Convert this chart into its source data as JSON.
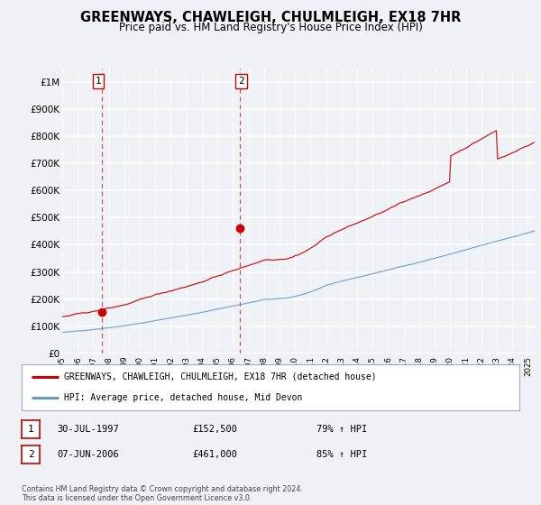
{
  "title": "GREENWAYS, CHAWLEIGH, CHULMLEIGH, EX18 7HR",
  "subtitle": "Price paid vs. HM Land Registry's House Price Index (HPI)",
  "title_fontsize": 10.5,
  "subtitle_fontsize": 8.5,
  "hpi_color": "#6699cc",
  "price_color": "#cc0000",
  "bg_color": "#eef2f7",
  "plot_bg": "#eef2f7",
  "grid_color": "#ffffff",
  "ylim": [
    0,
    1050000
  ],
  "yticks": [
    0,
    100000,
    200000,
    300000,
    400000,
    500000,
    600000,
    700000,
    800000,
    900000,
    1000000
  ],
  "ytick_labels": [
    "£0",
    "£100K",
    "£200K",
    "£300K",
    "£400K",
    "£500K",
    "£600K",
    "£700K",
    "£800K",
    "£900K",
    "£1M"
  ],
  "xlim_start": 1995.0,
  "xlim_end": 2025.5,
  "sale1_x": 1997.58,
  "sale1_y": 152500,
  "sale1_label": "1",
  "sale2_x": 2006.44,
  "sale2_y": 461000,
  "sale2_label": "2",
  "vline1_x": 1997.58,
  "vline2_x": 2006.44,
  "legend_line1": "GREENWAYS, CHAWLEIGH, CHULMLEIGH, EX18 7HR (detached house)",
  "legend_line2": "HPI: Average price, detached house, Mid Devon",
  "table_rows": [
    {
      "num": "1",
      "date": "30-JUL-1997",
      "price": "£152,500",
      "hpi": "79% ↑ HPI"
    },
    {
      "num": "2",
      "date": "07-JUN-2006",
      "price": "£461,000",
      "hpi": "85% ↑ HPI"
    }
  ],
  "footnote": "Contains HM Land Registry data © Crown copyright and database right 2024.\nThis data is licensed under the Open Government Licence v3.0."
}
